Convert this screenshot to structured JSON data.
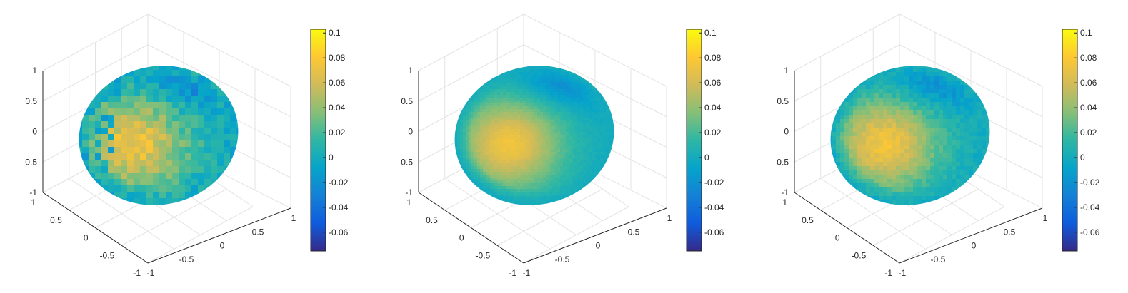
{
  "colormap": [
    "#352A87",
    "#0F5CDD",
    "#1481D6",
    "#06A4CA",
    "#2EB7A4",
    "#87BF77",
    "#D1BB59",
    "#FEC832",
    "#F9FB0E"
  ],
  "chart_data": [
    {
      "type": "surface",
      "title": "",
      "xlabel": "",
      "ylabel": "",
      "zlabel": "",
      "xlim": [
        -1,
        1
      ],
      "ylim": [
        -1,
        1
      ],
      "zlim": [
        -1,
        1
      ],
      "x_ticks": [
        "-1",
        "-0.5",
        "0",
        "0.5",
        "1"
      ],
      "y_ticks": [
        "-1",
        "-0.5",
        "0",
        "0.5",
        "1"
      ],
      "z_ticks": [
        "-1",
        "-0.5",
        "0",
        "0.5",
        "1"
      ],
      "colorbar": {
        "range": [
          -0.075,
          0.103
        ],
        "ticks": [
          "0.1",
          "0.08",
          "0.06",
          "0.04",
          "0.02",
          "0",
          "-0.02",
          "-0.04",
          "-0.06"
        ]
      },
      "grid": true,
      "shading": "faceted-blocky"
    },
    {
      "type": "surface",
      "title": "",
      "xlabel": "",
      "ylabel": "",
      "zlabel": "",
      "xlim": [
        -1,
        1
      ],
      "ylim": [
        -1,
        1
      ],
      "zlim": [
        -1,
        1
      ],
      "x_ticks": [
        "-1",
        "-0.5",
        "0",
        "0.5",
        "1"
      ],
      "y_ticks": [
        "-1",
        "-0.5",
        "0",
        "0.5",
        "1"
      ],
      "z_ticks": [
        "-1",
        "-0.5",
        "0",
        "0.5",
        "1"
      ],
      "colorbar": {
        "range": [
          -0.075,
          0.103
        ],
        "ticks": [
          "0.1",
          "0.08",
          "0.06",
          "0.04",
          "0.02",
          "0",
          "-0.02",
          "-0.04",
          "-0.06"
        ]
      },
      "grid": true,
      "shading": "smooth"
    },
    {
      "type": "surface",
      "title": "",
      "xlabel": "",
      "ylabel": "",
      "zlabel": "",
      "xlim": [
        -1,
        1
      ],
      "ylim": [
        -1,
        1
      ],
      "zlim": [
        -1,
        1
      ],
      "x_ticks": [
        "-1",
        "-0.5",
        "0",
        "0.5",
        "1"
      ],
      "y_ticks": [
        "-1",
        "-0.5",
        "0",
        "0.5",
        "1"
      ],
      "z_ticks": [
        "-1",
        "-0.5",
        "0",
        "0.5",
        "1"
      ],
      "colorbar": {
        "range": [
          -0.075,
          0.103
        ],
        "ticks": [
          "0.1",
          "0.08",
          "0.06",
          "0.04",
          "0.02",
          "0",
          "-0.02",
          "-0.04",
          "-0.06"
        ]
      },
      "grid": true,
      "shading": "partly-faceted"
    }
  ]
}
